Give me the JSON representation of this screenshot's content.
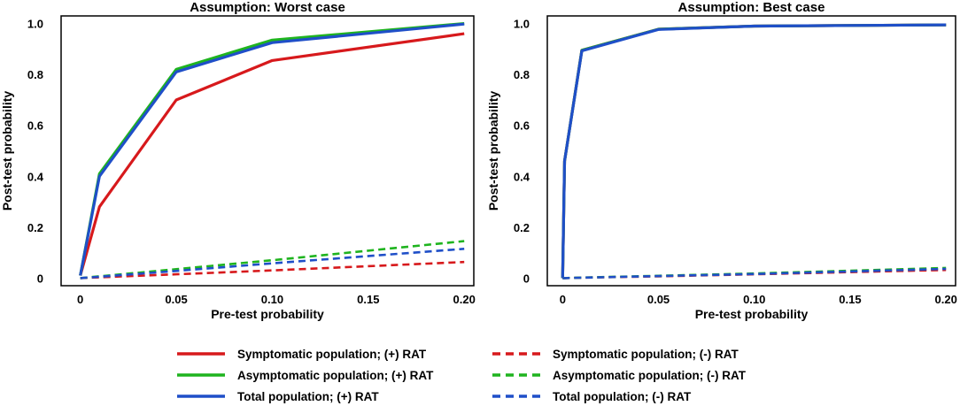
{
  "colors": {
    "symptomatic": "#d7191c",
    "asymptomatic": "#1fb41f",
    "total": "#1f4fc8"
  },
  "legend": [
    {
      "key": "sym_pos",
      "label": "Symptomatic population; (+) RAT",
      "color": "#d7191c",
      "dash": false
    },
    {
      "key": "asym_pos",
      "label": "Asymptomatic population; (+) RAT",
      "color": "#1fb41f",
      "dash": false
    },
    {
      "key": "tot_pos",
      "label": "Total population; (+) RAT",
      "color": "#1f4fc8",
      "dash": false
    },
    {
      "key": "sym_neg",
      "label": "Symptomatic population; (-) RAT",
      "color": "#d7191c",
      "dash": true
    },
    {
      "key": "asym_neg",
      "label": "Asymptomatic population; (-) RAT",
      "color": "#1fb41f",
      "dash": true
    },
    {
      "key": "tot_neg",
      "label": "Total population; (-) RAT",
      "color": "#1f4fc8",
      "dash": true
    }
  ],
  "chart_data": [
    {
      "type": "line",
      "title": "Assumption: Worst case",
      "xlabel": "Pre-test probability",
      "ylabel": "Post-test probability",
      "xlim": [
        -0.01,
        0.205
      ],
      "ylim": [
        -0.03,
        1.03
      ],
      "xticks": [
        0,
        0.05,
        0.1,
        0.15,
        0.2
      ],
      "xtick_labels": [
        "0",
        "0.05",
        "0.10",
        "0.15",
        "0.20"
      ],
      "yticks": [
        0,
        0.2,
        0.4,
        0.6,
        0.8,
        1.0
      ],
      "ytick_labels": [
        "0",
        "0.2",
        "0.4",
        "0.6",
        "0.8",
        "1.0"
      ],
      "x": [
        0,
        0.01,
        0.05,
        0.1,
        0.2
      ],
      "series": [
        {
          "key": "sym_pos",
          "name": "Symptomatic population; (+) RAT",
          "color": "#d7191c",
          "dash": false,
          "values": [
            0.01,
            0.28,
            0.7,
            0.855,
            0.96
          ]
        },
        {
          "key": "asym_pos",
          "name": "Asymptomatic population; (+) RAT",
          "color": "#1fb41f",
          "dash": false,
          "values": [
            0.01,
            0.41,
            0.82,
            0.935,
            1.0
          ]
        },
        {
          "key": "tot_pos",
          "name": "Total population; (+) RAT",
          "color": "#1f4fc8",
          "dash": false,
          "values": [
            0.01,
            0.4,
            0.81,
            0.925,
            0.998
          ]
        },
        {
          "key": "sym_neg",
          "name": "Symptomatic population; (-) RAT",
          "color": "#d7191c",
          "dash": true,
          "values": [
            0.0,
            0.003,
            0.015,
            0.03,
            0.063
          ]
        },
        {
          "key": "asym_neg",
          "name": "Asymptomatic population; (-) RAT",
          "color": "#1fb41f",
          "dash": true,
          "values": [
            0.0,
            0.007,
            0.035,
            0.07,
            0.145
          ]
        },
        {
          "key": "tot_neg",
          "name": "Total population; (-) RAT",
          "color": "#1f4fc8",
          "dash": true,
          "values": [
            0.0,
            0.005,
            0.028,
            0.058,
            0.115
          ]
        }
      ]
    },
    {
      "type": "line",
      "title": "Assumption: Best case",
      "xlabel": "Pre-test probability",
      "ylabel": "Post-test probability",
      "xlim": [
        -0.008,
        0.205
      ],
      "ylim": [
        -0.03,
        1.03
      ],
      "xticks": [
        0,
        0.05,
        0.1,
        0.15,
        0.2
      ],
      "xtick_labels": [
        "0",
        "0.05",
        "0.10",
        "0.15",
        "0.20"
      ],
      "yticks": [
        0,
        0.2,
        0.4,
        0.6,
        0.8,
        1.0
      ],
      "ytick_labels": [
        "0",
        "0.2",
        "0.4",
        "0.6",
        "0.8",
        "1.0"
      ],
      "x": [
        0,
        0.001,
        0.01,
        0.05,
        0.1,
        0.2
      ],
      "series": [
        {
          "key": "sym_pos",
          "name": "Symptomatic population; (+) RAT",
          "color": "#d7191c",
          "dash": false,
          "values": [
            0.0,
            0.46,
            0.895,
            0.978,
            0.99,
            0.995
          ]
        },
        {
          "key": "asym_pos",
          "name": "Asymptomatic population; (+) RAT",
          "color": "#1fb41f",
          "dash": false,
          "values": [
            0.0,
            0.46,
            0.895,
            0.978,
            0.99,
            0.995
          ]
        },
        {
          "key": "tot_pos",
          "name": "Total population; (+) RAT",
          "color": "#1f4fc8",
          "dash": false,
          "values": [
            0.0,
            0.46,
            0.893,
            0.977,
            0.99,
            0.995
          ]
        },
        {
          "key": "sym_neg",
          "name": "Symptomatic population; (-) RAT",
          "color": "#d7191c",
          "dash": true,
          "values": [
            0.0,
            0.0,
            0.0015,
            0.007,
            0.015,
            0.032
          ]
        },
        {
          "key": "asym_neg",
          "name": "Asymptomatic population; (-) RAT",
          "color": "#1fb41f",
          "dash": true,
          "values": [
            0.0,
            0.0,
            0.002,
            0.009,
            0.018,
            0.04
          ]
        },
        {
          "key": "tot_neg",
          "name": "Total population; (-) RAT",
          "color": "#1f4fc8",
          "dash": true,
          "values": [
            0.0,
            0.0,
            0.0018,
            0.008,
            0.016,
            0.036
          ]
        }
      ]
    }
  ]
}
